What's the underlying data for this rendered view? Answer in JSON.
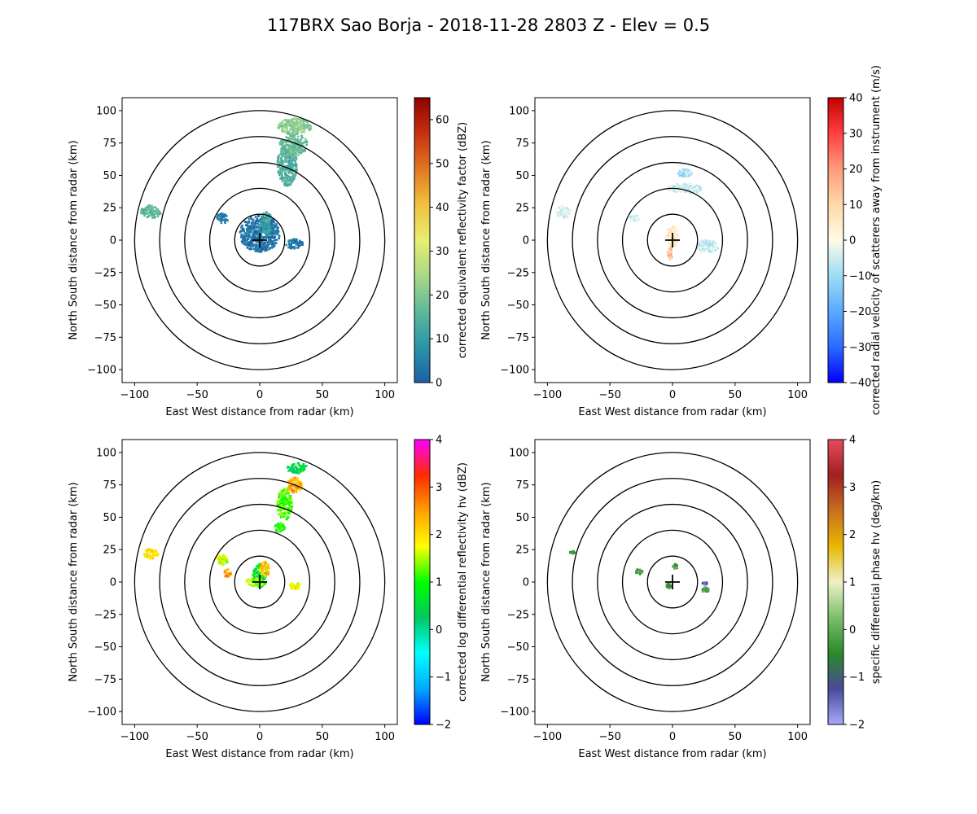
{
  "figure": {
    "title": "117BRX Sao Borja - 2018-11-28 2803 Z -  Elev = 0.5"
  },
  "chart_data": [
    {
      "type": "heatmap",
      "panel": "top-left",
      "field": "reflectivity",
      "xlabel": "East West distance from radar (km)",
      "ylabel": "North South distance from radar (km)",
      "xlim": [
        -110,
        110
      ],
      "ylim": [
        -110,
        110
      ],
      "xticks": [
        -100,
        -50,
        0,
        50,
        100
      ],
      "yticks": [
        -100,
        -75,
        -50,
        -25,
        0,
        25,
        50,
        75,
        100
      ],
      "range_rings_km": [
        20,
        40,
        60,
        80,
        100
      ],
      "colorbar": {
        "label": "corrected equivalent reflectivity factor (dBZ)",
        "range": [
          0,
          65
        ],
        "ticks": [
          0,
          10,
          20,
          30,
          40,
          50,
          60
        ],
        "stops": [
          "#1b5fa8",
          "#2a95a8",
          "#5fb89a",
          "#a8d888",
          "#e8ee70",
          "#f0c040",
          "#e07820",
          "#c83010",
          "#8c0000"
        ]
      },
      "echoes": [
        {
          "x": 0,
          "y": 5,
          "rx": 16,
          "ry": 14,
          "value": 3
        },
        {
          "x": -30,
          "y": 17,
          "rx": 5,
          "ry": 4,
          "value": 4
        },
        {
          "x": 28,
          "y": -3,
          "rx": 7,
          "ry": 4,
          "value": 4
        },
        {
          "x": 4,
          "y": 10,
          "rx": 5,
          "ry": 6,
          "value": 10
        },
        {
          "x": -87,
          "y": 22,
          "rx": 8,
          "ry": 5,
          "value": 16
        },
        {
          "x": 22,
          "y": 58,
          "rx": 8,
          "ry": 16,
          "value": 14
        },
        {
          "x": 27,
          "y": 74,
          "rx": 11,
          "ry": 9,
          "value": 17
        },
        {
          "x": 28,
          "y": 88,
          "rx": 14,
          "ry": 6,
          "value": 21
        },
        {
          "x": 5,
          "y": 18,
          "rx": 4,
          "ry": 4,
          "value": 12
        }
      ]
    },
    {
      "type": "heatmap",
      "panel": "top-right",
      "field": "velocity",
      "xlabel": "East West distance from radar (km)",
      "ylabel": "North South distance from radar (km)",
      "xlim": [
        -110,
        110
      ],
      "ylim": [
        -110,
        110
      ],
      "xticks": [
        -100,
        -50,
        0,
        50,
        100
      ],
      "yticks": [
        -100,
        -75,
        -50,
        -25,
        0,
        25,
        50,
        75,
        100
      ],
      "range_rings_km": [
        20,
        40,
        60,
        80,
        100
      ],
      "colorbar": {
        "label": "corrected radial velocity of scatterers away from instrument (m/s)",
        "range": [
          -40,
          40
        ],
        "ticks": [
          -40,
          -30,
          -20,
          -10,
          0,
          10,
          20,
          30,
          40
        ],
        "stops": [
          "#0000ff",
          "#2a6aff",
          "#5aaaff",
          "#9ddcf5",
          "#fffbe8",
          "#ffd8a8",
          "#ff9a7a",
          "#ff4040",
          "#c40000"
        ]
      },
      "echoes": [
        {
          "x": 0,
          "y": 3,
          "rx": 5,
          "ry": 8,
          "value": 6
        },
        {
          "x": -2,
          "y": -10,
          "rx": 2,
          "ry": 5,
          "value": 14
        },
        {
          "x": 28,
          "y": -5,
          "rx": 9,
          "ry": 5,
          "value": -6
        },
        {
          "x": -30,
          "y": 17,
          "rx": 4,
          "ry": 3,
          "value": -5
        },
        {
          "x": -87,
          "y": 22,
          "rx": 6,
          "ry": 5,
          "value": -4
        },
        {
          "x": 10,
          "y": 40,
          "rx": 14,
          "ry": 4,
          "value": -5
        },
        {
          "x": 10,
          "y": 52,
          "rx": 6,
          "ry": 3,
          "value": -10
        }
      ]
    },
    {
      "type": "heatmap",
      "panel": "bottom-left",
      "field": "differential_reflectivity",
      "xlabel": "East West distance from radar (km)",
      "ylabel": "North South distance from radar (km)",
      "xlim": [
        -110,
        110
      ],
      "ylim": [
        -110,
        110
      ],
      "xticks": [
        -100,
        -50,
        0,
        50,
        100
      ],
      "yticks": [
        -100,
        -75,
        -50,
        -25,
        0,
        25,
        50,
        75,
        100
      ],
      "range_rings_km": [
        20,
        40,
        60,
        80,
        100
      ],
      "colorbar": {
        "label": "corrected log differential reflectivity hv (dBZ)",
        "range": [
          -2,
          4
        ],
        "ticks": [
          -2,
          -1,
          0,
          1,
          2,
          3,
          4
        ],
        "stops": [
          "#0000ff",
          "#00aaff",
          "#00ffff",
          "#00c860",
          "#00ff00",
          "#ffff00",
          "#ffa000",
          "#ff2a00",
          "#ff00ff"
        ]
      },
      "echoes": [
        {
          "x": 0,
          "y": 5,
          "rx": 6,
          "ry": 9,
          "value": 0.6
        },
        {
          "x": -4,
          "y": 0,
          "rx": 8,
          "ry": 3,
          "value": 1.4
        },
        {
          "x": 4,
          "y": 10,
          "rx": 4,
          "ry": 6,
          "value": 2.2
        },
        {
          "x": -30,
          "y": 17,
          "rx": 5,
          "ry": 4,
          "value": 1.6
        },
        {
          "x": -26,
          "y": 7,
          "rx": 3,
          "ry": 3,
          "value": 2.6
        },
        {
          "x": 28,
          "y": -3,
          "rx": 5,
          "ry": 3,
          "value": 1.8
        },
        {
          "x": -87,
          "y": 22,
          "rx": 6,
          "ry": 4,
          "value": 2.0
        },
        {
          "x": 20,
          "y": 60,
          "rx": 6,
          "ry": 12,
          "value": 1.2
        },
        {
          "x": 28,
          "y": 75,
          "rx": 6,
          "ry": 6,
          "value": 2.4
        },
        {
          "x": 30,
          "y": 88,
          "rx": 8,
          "ry": 4,
          "value": 0.4
        },
        {
          "x": 16,
          "y": 42,
          "rx": 4,
          "ry": 4,
          "value": 1.0
        }
      ]
    },
    {
      "type": "heatmap",
      "panel": "bottom-right",
      "field": "specific_differential_phase",
      "xlabel": "East West distance from radar (km)",
      "ylabel": "North South distance from radar (km)",
      "xlim": [
        -110,
        110
      ],
      "ylim": [
        -110,
        110
      ],
      "xticks": [
        -100,
        -50,
        0,
        50,
        100
      ],
      "yticks": [
        -100,
        -75,
        -50,
        -25,
        0,
        25,
        50,
        75,
        100
      ],
      "range_rings_km": [
        20,
        40,
        60,
        80,
        100
      ],
      "colorbar": {
        "label": "specific differential phase hv (deg/km)",
        "range": [
          -2,
          4
        ],
        "ticks": [
          -2,
          -1,
          0,
          1,
          2,
          3,
          4
        ],
        "stops": [
          "#a8a8ff",
          "#4a4a9a",
          "#2a8a2a",
          "#7abf6a",
          "#f0f0c8",
          "#e8b800",
          "#c87020",
          "#a02020",
          "#e84a60"
        ]
      },
      "echoes": [
        {
          "x": -27,
          "y": 8,
          "rx": 3,
          "ry": 2,
          "value": -0.2
        },
        {
          "x": -3,
          "y": -3,
          "rx": 2,
          "ry": 2,
          "value": -0.3
        },
        {
          "x": 2,
          "y": 12,
          "rx": 2,
          "ry": 2,
          "value": -0.2
        },
        {
          "x": 26,
          "y": -6,
          "rx": 3,
          "ry": 2,
          "value": -0.1
        },
        {
          "x": 26,
          "y": -1,
          "rx": 2,
          "ry": 1,
          "value": -1.5
        },
        {
          "x": -80,
          "y": 23,
          "rx": 2,
          "ry": 1,
          "value": -0.4
        }
      ]
    }
  ]
}
